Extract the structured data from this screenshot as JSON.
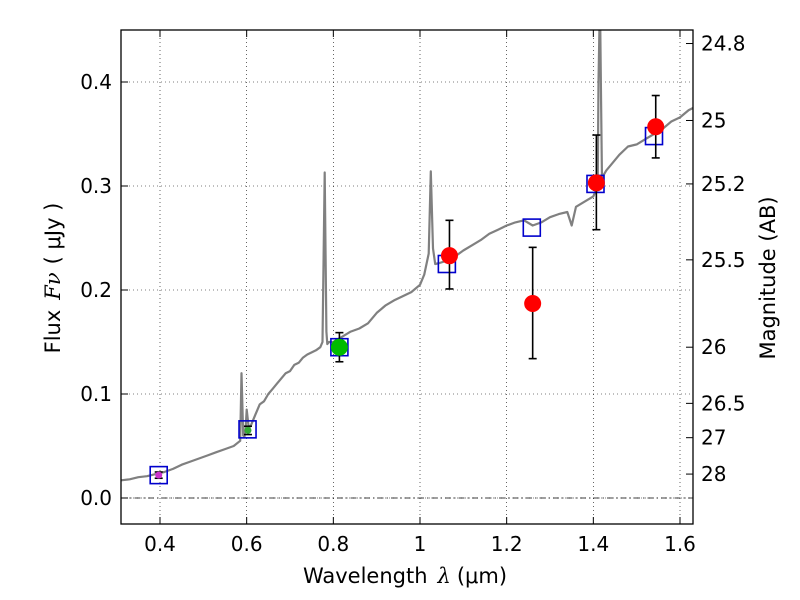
{
  "chart_data": {
    "type": "scatter",
    "xlabel": "Wavelength",
    "xlabel_symbol": "λ",
    "xlabel_unit": "(μm)",
    "ylabel": "Flux",
    "ylabel_symbol": "Fν",
    "ylabel_unit": "( μJy )",
    "ylabel_right": "Magnitude (AB)",
    "xlim": [
      0.31,
      1.63
    ],
    "ylim": [
      -0.025,
      0.45
    ],
    "grid": true,
    "x_ticks": [
      0.4,
      0.6,
      0.8,
      1.0,
      1.2,
      1.4,
      1.6
    ],
    "x_tick_labels": [
      "0.4",
      "0.6",
      "0.8",
      "1",
      "1.2",
      "1.4",
      "1.6"
    ],
    "y_ticks": [
      0.0,
      0.1,
      0.2,
      0.3,
      0.4
    ],
    "y_tick_labels": [
      "0.0",
      "0.1",
      "0.2",
      "0.3",
      "0.4"
    ],
    "mag_ticks": [
      {
        "label": "24.8",
        "flux": 0.437
      },
      {
        "label": "25",
        "flux": 0.363
      },
      {
        "label": "25.2",
        "flux": 0.302
      },
      {
        "label": "25.5",
        "flux": 0.229
      },
      {
        "label": "26",
        "flux": 0.145
      },
      {
        "label": "26.5",
        "flux": 0.091
      },
      {
        "label": "27",
        "flux": 0.058
      },
      {
        "label": "28",
        "flux": 0.023
      }
    ],
    "zero_line": 0.0,
    "series": [
      {
        "name": "template spectrum",
        "kind": "line",
        "color": "#808080",
        "x": [
          0.31,
          0.33,
          0.35,
          0.37,
          0.39,
          0.41,
          0.43,
          0.45,
          0.47,
          0.49,
          0.51,
          0.53,
          0.55,
          0.57,
          0.585,
          0.588,
          0.592,
          0.595,
          0.598,
          0.6,
          0.605,
          0.61,
          0.62,
          0.63,
          0.64,
          0.65,
          0.66,
          0.67,
          0.68,
          0.69,
          0.7,
          0.71,
          0.72,
          0.73,
          0.74,
          0.75,
          0.76,
          0.77,
          0.775,
          0.78,
          0.784,
          0.786,
          0.79,
          0.8,
          0.82,
          0.84,
          0.86,
          0.88,
          0.9,
          0.92,
          0.94,
          0.96,
          0.98,
          1.0,
          1.01,
          1.02,
          1.025,
          1.03,
          1.035,
          1.045,
          1.06,
          1.08,
          1.1,
          1.12,
          1.14,
          1.16,
          1.18,
          1.2,
          1.22,
          1.24,
          1.26,
          1.28,
          1.3,
          1.32,
          1.34,
          1.35,
          1.36,
          1.38,
          1.4,
          1.41,
          1.412,
          1.414,
          1.416,
          1.418,
          1.42,
          1.423,
          1.43,
          1.44,
          1.46,
          1.48,
          1.5,
          1.52,
          1.54,
          1.56,
          1.58,
          1.6,
          1.62,
          1.63
        ],
        "y": [
          0.017,
          0.018,
          0.02,
          0.021,
          0.023,
          0.025,
          0.028,
          0.032,
          0.035,
          0.038,
          0.041,
          0.044,
          0.047,
          0.05,
          0.055,
          0.12,
          0.06,
          0.059,
          0.07,
          0.085,
          0.067,
          0.07,
          0.08,
          0.09,
          0.093,
          0.1,
          0.105,
          0.11,
          0.115,
          0.12,
          0.122,
          0.128,
          0.13,
          0.135,
          0.138,
          0.14,
          0.142,
          0.145,
          0.15,
          0.313,
          0.16,
          0.148,
          0.15,
          0.15,
          0.155,
          0.16,
          0.163,
          0.168,
          0.178,
          0.185,
          0.19,
          0.194,
          0.198,
          0.205,
          0.215,
          0.235,
          0.314,
          0.24,
          0.225,
          0.226,
          0.228,
          0.232,
          0.238,
          0.243,
          0.248,
          0.254,
          0.258,
          0.262,
          0.265,
          0.267,
          0.262,
          0.265,
          0.27,
          0.273,
          0.275,
          0.262,
          0.28,
          0.285,
          0.29,
          0.3,
          0.4,
          0.45,
          0.45,
          0.38,
          0.305,
          0.31,
          0.315,
          0.32,
          0.33,
          0.338,
          0.34,
          0.345,
          0.35,
          0.355,
          0.362,
          0.366,
          0.373,
          0.375
        ]
      },
      {
        "name": "model photometry",
        "kind": "marker",
        "marker": "square",
        "color": "#0000cc",
        "x": [
          0.397,
          0.602,
          0.814,
          1.062,
          1.258,
          1.405,
          1.54
        ],
        "y": [
          0.022,
          0.066,
          0.145,
          0.225,
          0.26,
          0.302,
          0.348
        ]
      },
      {
        "name": "observed fluxes",
        "kind": "marker",
        "marker": "circle",
        "color": "#ff0000",
        "x": [
          1.068,
          1.26,
          1.407,
          1.544
        ],
        "y": [
          0.233,
          0.187,
          0.303,
          0.357
        ],
        "yerr_low": [
          0.032,
          0.053,
          0.045,
          0.03
        ],
        "yerr_high": [
          0.034,
          0.054,
          0.046,
          0.03
        ]
      },
      {
        "name": "observed flux (green)",
        "kind": "marker",
        "marker": "circle",
        "color": "#00bb00",
        "x": [
          0.814
        ],
        "y": [
          0.145
        ],
        "yerr_low": [
          0.014
        ],
        "yerr_high": [
          0.014
        ]
      },
      {
        "name": "observed flux (green small)",
        "kind": "marker",
        "marker": "circle",
        "color": "#33aa33",
        "x": [
          0.603
        ],
        "y": [
          0.065
        ],
        "yerr_low": [
          0.004
        ],
        "yerr_high": [
          0.004
        ]
      },
      {
        "name": "observed flux (magenta small)",
        "kind": "marker",
        "marker": "circle",
        "color": "#cc33cc",
        "x": [
          0.397
        ],
        "y": [
          0.022
        ],
        "yerr_low": [
          0.003
        ],
        "yerr_high": [
          0.003
        ]
      }
    ]
  }
}
